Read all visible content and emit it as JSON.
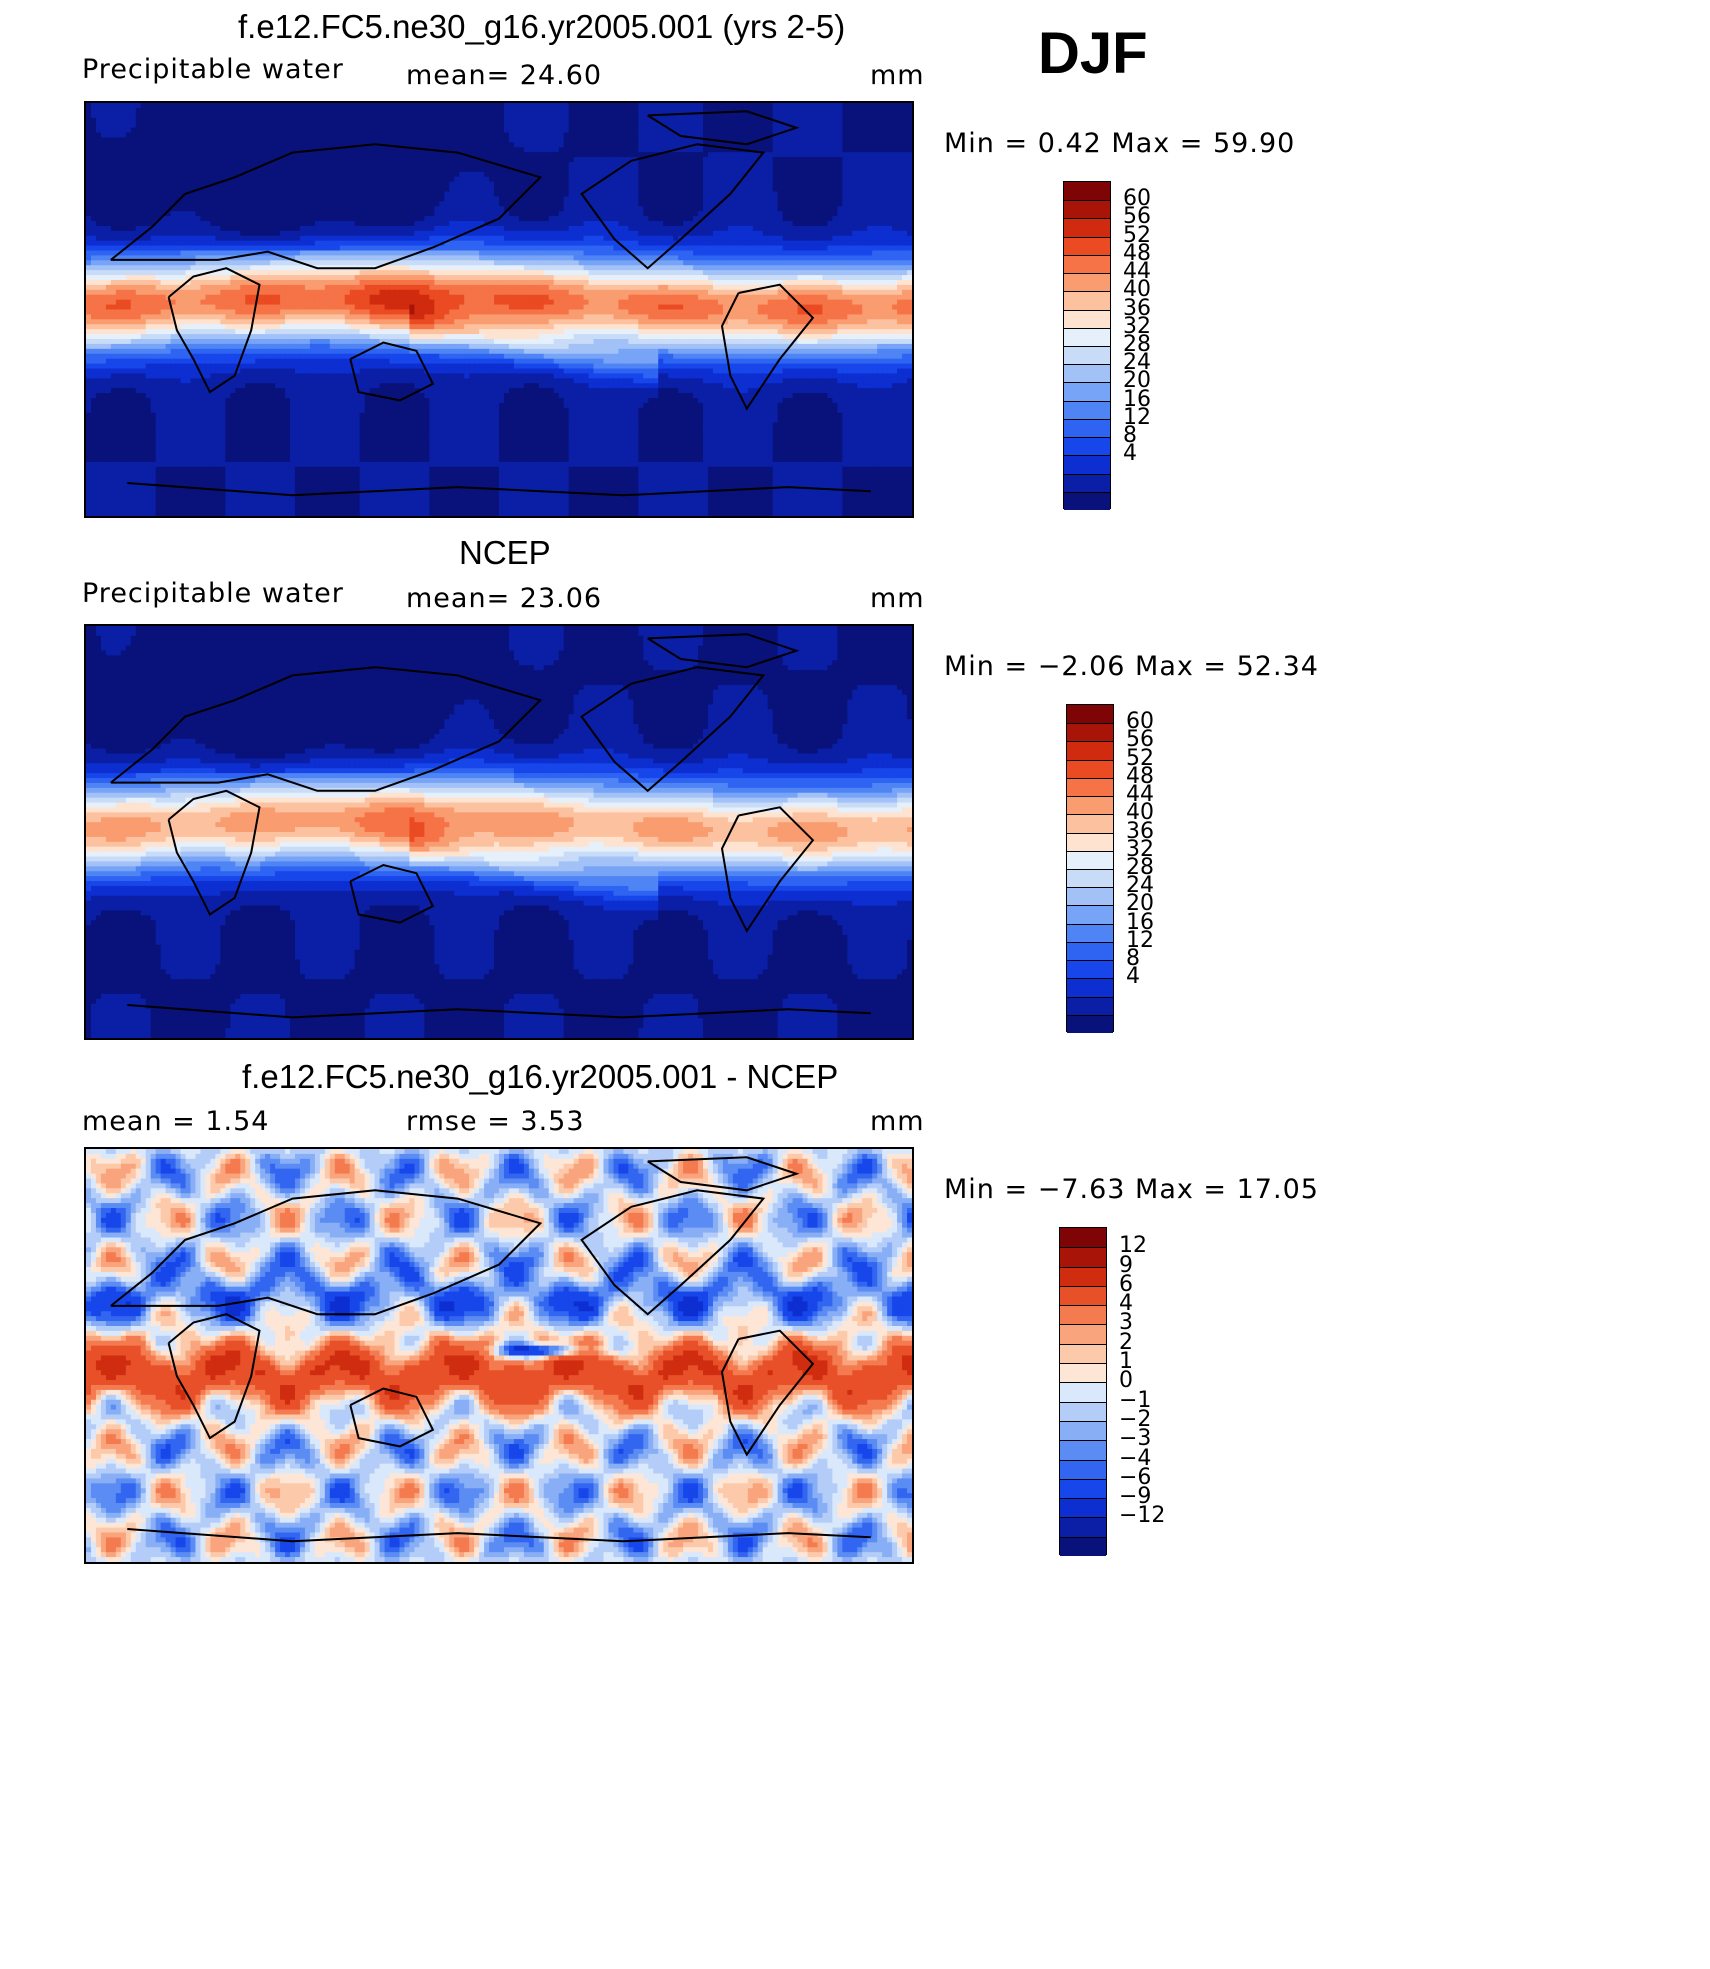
{
  "season": "DJF",
  "panels": [
    {
      "id": "model",
      "title": "f.e12.FC5.ne30_g16.yr2005.001 (yrs 2-5)",
      "left_text": "Precipitable  water",
      "mid_text": "mean=   24.60",
      "unit": "mm",
      "minmax": "Min  =     0.42  Max  =    59.90",
      "colors": [
        "#08127a",
        "#0a1fa6",
        "#0d2fd1",
        "#1746ea",
        "#2f64f2",
        "#4f84f5",
        "#78a4f7",
        "#a2c1f7",
        "#c8dcf8",
        "#e6f0fb",
        "#fde3d0",
        "#fcc2a0",
        "#f99c70",
        "#f57346",
        "#ea4b23",
        "#d02a0f",
        "#a81408",
        "#7f0406"
      ],
      "labels": [
        "60",
        "56",
        "52",
        "48",
        "44",
        "40",
        "36",
        "32",
        "28",
        "24",
        "20",
        "16",
        "12",
        "8",
        "4"
      ]
    },
    {
      "id": "obs",
      "title": "NCEP",
      "left_text": "Precipitable  water",
      "mid_text": "mean=   23.06",
      "unit": "mm",
      "minmax": "Min  =    −2.06  Max  =    52.34",
      "colors": [
        "#08127a",
        "#0a1fa6",
        "#0d2fd1",
        "#1746ea",
        "#2f64f2",
        "#4f84f5",
        "#78a4f7",
        "#a2c1f7",
        "#c8dcf8",
        "#e6f0fb",
        "#fde3d0",
        "#fcc2a0",
        "#f99c70",
        "#f57346",
        "#ea4b23",
        "#d02a0f",
        "#a81408",
        "#7f0406"
      ],
      "labels": [
        "60",
        "56",
        "52",
        "48",
        "44",
        "40",
        "36",
        "32",
        "28",
        "24",
        "20",
        "16",
        "12",
        "8",
        "4"
      ]
    },
    {
      "id": "diff",
      "title": "f.e12.FC5.ne30_g16.yr2005.001 - NCEP",
      "left_text": "mean  =     1.54",
      "mid_text": "rmse  =     3.53",
      "unit": "mm",
      "minmax": "Min  =    −7.63  Max  =    17.05",
      "colors": [
        "#08127a",
        "#0a1fa6",
        "#0d2fd1",
        "#1746ea",
        "#3366f0",
        "#5b8cf3",
        "#88aef6",
        "#b4cdf8",
        "#dae8fb",
        "#fde6d6",
        "#fccaaa",
        "#f9a47c",
        "#f47a4f",
        "#e8502a",
        "#cf2c10",
        "#a81408",
        "#7f0406"
      ],
      "labels": [
        "12",
        "9",
        "6",
        "4",
        "3",
        "2",
        "1",
        "0",
        "−1",
        "−2",
        "−3",
        "−4",
        "−6",
        "−9",
        "−12"
      ]
    }
  ]
}
